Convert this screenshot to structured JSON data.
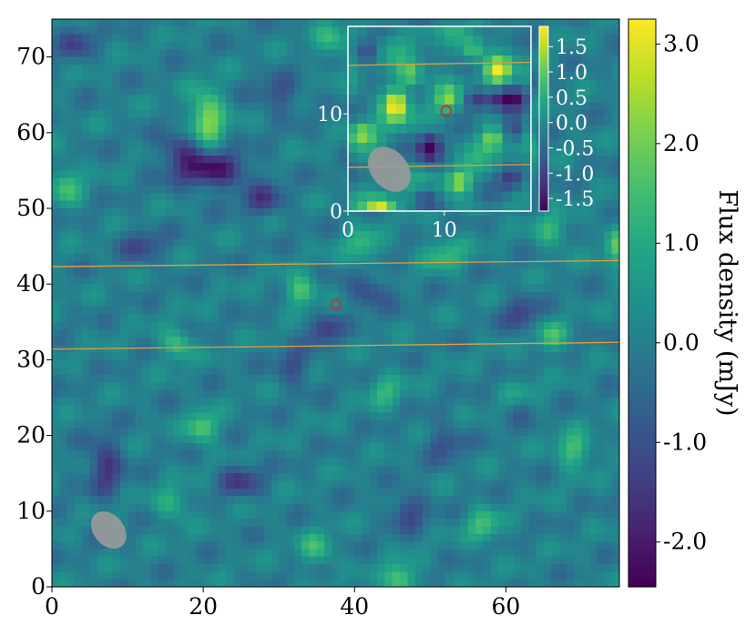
{
  "chart_data": [
    {
      "type": "heatmap",
      "x_ticks": [
        "0",
        "20",
        "40",
        "60"
      ],
      "y_ticks": [
        "0",
        "10",
        "20",
        "30",
        "40",
        "50",
        "60",
        "70"
      ],
      "xlim": [
        0,
        75
      ],
      "ylim": [
        0,
        75
      ],
      "colormap": "viridis",
      "source_marker": {
        "x": 37.5,
        "y": 37.3,
        "color": "#d62728"
      },
      "beam": {
        "x": 7.5,
        "y": 7.5,
        "width": 4,
        "height": 5.5,
        "angle_deg": -40,
        "color": "#9a9a9a"
      },
      "guide_lines": [
        {
          "y_start": 42.3,
          "y_end": 43.1,
          "color": "#e1a03a"
        },
        {
          "y_start": 31.4,
          "y_end": 32.3,
          "color": "#e1a03a"
        }
      ],
      "colorbar": {
        "label": "Flux density (mJy)",
        "ticks": [
          "-2.0",
          "-1.0",
          "0.0",
          "1.0",
          "2.0",
          "3.0"
        ],
        "range": [
          -2.45,
          3.25
        ]
      },
      "features": [
        {
          "x": 20.5,
          "y": 62.0,
          "v": 2.4,
          "sx": 1.6,
          "sy": 2.6
        },
        {
          "x": 21.0,
          "y": 55.0,
          "v": -2.2,
          "sx": 3.4,
          "sy": 1.7
        },
        {
          "x": 17.0,
          "y": 58.0,
          "v": -1.3,
          "sx": 2.0,
          "sy": 1.6
        },
        {
          "x": 28.0,
          "y": 51.0,
          "v": -1.3,
          "sx": 2.0,
          "sy": 1.5
        },
        {
          "x": 41.0,
          "y": 45.0,
          "v": 1.4,
          "sx": 1.6,
          "sy": 1.6
        },
        {
          "x": 33.0,
          "y": 39.0,
          "v": 1.9,
          "sx": 1.4,
          "sy": 1.4
        },
        {
          "x": 36.0,
          "y": 34.0,
          "v": -1.5,
          "sx": 1.4,
          "sy": 1.4
        },
        {
          "x": 42.0,
          "y": 39.0,
          "v": -1.2,
          "sx": 2.0,
          "sy": 1.5
        },
        {
          "x": 32.0,
          "y": 29.0,
          "v": -1.2,
          "sx": 1.6,
          "sy": 1.6
        },
        {
          "x": 16.5,
          "y": 32.0,
          "v": 1.6,
          "sx": 1.4,
          "sy": 1.4
        },
        {
          "x": 20.0,
          "y": 21.0,
          "v": 1.9,
          "sx": 1.4,
          "sy": 1.4
        },
        {
          "x": 7.0,
          "y": 16.0,
          "v": -1.6,
          "sx": 1.6,
          "sy": 2.6
        },
        {
          "x": 52.0,
          "y": 44.0,
          "v": 1.3,
          "sx": 2.0,
          "sy": 1.5
        },
        {
          "x": 50.0,
          "y": 60.0,
          "v": 1.5,
          "sx": 1.6,
          "sy": 2.0
        },
        {
          "x": 57.0,
          "y": 56.0,
          "v": -1.4,
          "sx": 2.4,
          "sy": 1.5
        },
        {
          "x": 62.0,
          "y": 58.0,
          "v": 1.3,
          "sx": 1.6,
          "sy": 1.6
        },
        {
          "x": 56.0,
          "y": 52.0,
          "v": 1.2,
          "sx": 1.6,
          "sy": 1.6
        },
        {
          "x": 66.0,
          "y": 47.0,
          "v": 1.3,
          "sx": 1.6,
          "sy": 1.6
        },
        {
          "x": 62.0,
          "y": 36.0,
          "v": -1.3,
          "sx": 1.6,
          "sy": 1.6
        },
        {
          "x": 66.0,
          "y": 33.0,
          "v": 1.5,
          "sx": 1.4,
          "sy": 1.4
        },
        {
          "x": 62.0,
          "y": 25.0,
          "v": 1.4,
          "sx": 1.6,
          "sy": 1.6
        },
        {
          "x": 62.0,
          "y": 24.0,
          "v": -1.4,
          "sx": 1.4,
          "sy": 1.4
        },
        {
          "x": 69.0,
          "y": 18.0,
          "v": 1.7,
          "sx": 1.6,
          "sy": 1.6
        },
        {
          "x": 75.0,
          "y": 45.0,
          "v": 1.6,
          "sx": 1.4,
          "sy": 2.0
        },
        {
          "x": 46.0,
          "y": 1.0,
          "v": 2.0,
          "sx": 1.5,
          "sy": 1.5
        },
        {
          "x": 35.0,
          "y": 5.0,
          "v": 1.3,
          "sx": 1.6,
          "sy": 1.6
        },
        {
          "x": 47.0,
          "y": 10.0,
          "v": -1.3,
          "sx": 1.6,
          "sy": 1.6
        },
        {
          "x": 57.0,
          "y": 8.0,
          "v": 1.4,
          "sx": 1.6,
          "sy": 1.6
        },
        {
          "x": 25.0,
          "y": 14.0,
          "v": -1.3,
          "sx": 2.0,
          "sy": 1.5
        },
        {
          "x": 16.0,
          "y": 11.0,
          "v": 1.2,
          "sx": 1.6,
          "sy": 1.6
        },
        {
          "x": 2.0,
          "y": 53.0,
          "v": 1.4,
          "sx": 1.4,
          "sy": 2.0
        },
        {
          "x": 12.0,
          "y": 45.0,
          "v": -1.1,
          "sx": 2.0,
          "sy": 1.6
        },
        {
          "x": 30.0,
          "y": 65.0,
          "v": -1.1,
          "sx": 2.0,
          "sy": 1.6
        },
        {
          "x": 37.0,
          "y": 72.0,
          "v": 1.3,
          "sx": 1.6,
          "sy": 1.6
        },
        {
          "x": 3.0,
          "y": 72.0,
          "v": -1.2,
          "sx": 1.6,
          "sy": 1.6
        },
        {
          "x": 44.0,
          "y": 26.0,
          "v": 1.2,
          "sx": 1.6,
          "sy": 1.6
        },
        {
          "x": 52.0,
          "y": 19.0,
          "v": -1.1,
          "sx": 1.6,
          "sy": 1.6
        }
      ]
    },
    {
      "type": "heatmap",
      "x_ticks": [
        "0",
        "10"
      ],
      "y_ticks": [
        "0",
        "10"
      ],
      "xlim": [
        0,
        19
      ],
      "ylim": [
        0,
        19
      ],
      "colormap": "viridis",
      "source_marker": {
        "x": 10.2,
        "y": 10.3,
        "color": "#d62728"
      },
      "beam": {
        "x": 4.3,
        "y": 4.3,
        "width": 3.8,
        "height": 5.2,
        "angle_deg": -40,
        "color": "#9a9a9a"
      },
      "guide_lines": [
        {
          "y_start": 15.0,
          "y_end": 15.3,
          "color": "#e1a03a"
        },
        {
          "y_start": 4.5,
          "y_end": 4.8,
          "color": "#e1a03a"
        }
      ],
      "colorbar": {
        "label": "",
        "ticks": [
          "-1.5",
          "-1.0",
          "-0.5",
          "0.0",
          "0.5",
          "1.0",
          "1.5"
        ],
        "range": [
          -1.75,
          1.9
        ]
      },
      "features": [
        {
          "x": 5.0,
          "y": 11.0,
          "v": 1.8,
          "sx": 0.9,
          "sy": 1.2
        },
        {
          "x": 8.5,
          "y": 6.5,
          "v": -1.6,
          "sx": 0.9,
          "sy": 1.2
        },
        {
          "x": 10.5,
          "y": 11.5,
          "v": 1.0,
          "sx": 0.9,
          "sy": 0.9
        },
        {
          "x": 13.5,
          "y": 11.5,
          "v": -1.4,
          "sx": 1.1,
          "sy": 0.8
        },
        {
          "x": 16.5,
          "y": 11.5,
          "v": -1.6,
          "sx": 1.2,
          "sy": 0.8
        },
        {
          "x": 15.5,
          "y": 14.5,
          "v": 1.6,
          "sx": 0.9,
          "sy": 0.9
        },
        {
          "x": 3.5,
          "y": 0.0,
          "v": 1.8,
          "sx": 1.0,
          "sy": 0.9
        },
        {
          "x": 15.0,
          "y": 7.5,
          "v": 1.3,
          "sx": 0.9,
          "sy": 0.9
        },
        {
          "x": 1.5,
          "y": 8.0,
          "v": 1.2,
          "sx": 0.9,
          "sy": 0.9
        },
        {
          "x": 6.5,
          "y": 14.0,
          "v": 1.2,
          "sx": 0.9,
          "sy": 0.9
        },
        {
          "x": 11.5,
          "y": 3.0,
          "v": 1.3,
          "sx": 0.9,
          "sy": 0.9
        },
        {
          "x": 17.0,
          "y": 3.5,
          "v": -1.2,
          "sx": 0.9,
          "sy": 0.9
        },
        {
          "x": 2.0,
          "y": 16.5,
          "v": -1.0,
          "sx": 0.9,
          "sy": 0.9
        },
        {
          "x": 13.0,
          "y": 16.5,
          "v": 1.0,
          "sx": 0.9,
          "sy": 0.9
        },
        {
          "x": 17.5,
          "y": 8.5,
          "v": -1.0,
          "sx": 0.9,
          "sy": 0.9
        },
        {
          "x": 8.0,
          "y": 1.5,
          "v": -0.9,
          "sx": 0.9,
          "sy": 0.9
        }
      ]
    }
  ]
}
